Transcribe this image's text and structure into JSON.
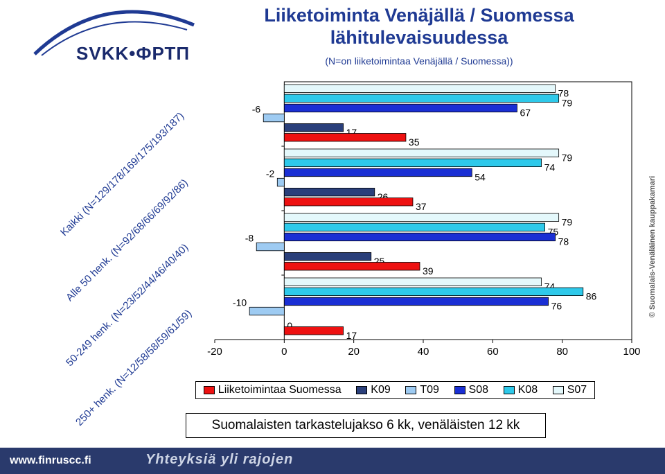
{
  "header": {
    "logo_text": "SVKK•ФРТП",
    "title": "Liiketoiminta Venäjällä / Suomessa lähitulevaisuudessa",
    "subtitle": "(N=on liiketoimintaa Venäjällä / Suomessa))"
  },
  "side_label": "© Suomalais-Venäläinen kauppakamari",
  "note": "Suomalaisten tarkastelujakso 6 kk, venäläisten 12 kk",
  "footer": {
    "url": "www.finruscc.fi",
    "slogan": "Yhteyksiä yli rajojen"
  },
  "colors": {
    "Liiketoimintaa Suomessa": "#ee1111",
    "K09": "#2a3f7a",
    "T09": "#9ecbf2",
    "S08": "#1a2fd4",
    "K08": "#2ec9ea",
    "S07": "#e4f8fb"
  },
  "chart_data": {
    "type": "bar",
    "orientation": "horizontal",
    "categories": [
      "Kaikki (N=129/178/169/175/193/187)",
      "Alle 50 henk. (N=92/68/66/69/92/86)",
      "50-249 henk. (N=23/52/44/46/40/40)",
      "250+ henk. (N=12/58/58/59/61/59)"
    ],
    "series": [
      {
        "name": "S07",
        "values": [
          78,
          79,
          79,
          74
        ]
      },
      {
        "name": "K08",
        "values": [
          79,
          74,
          75,
          86
        ]
      },
      {
        "name": "S08",
        "values": [
          67,
          54,
          78,
          76
        ]
      },
      {
        "name": "T09",
        "values": [
          -6,
          -2,
          -8,
          -10
        ]
      },
      {
        "name": "K09",
        "values": [
          17,
          26,
          25,
          0
        ]
      },
      {
        "name": "Liiketoimintaa Suomessa",
        "values": [
          35,
          37,
          39,
          17
        ]
      }
    ],
    "legend_order": [
      "Liiketoimintaa Suomessa",
      "K09",
      "T09",
      "S08",
      "K08",
      "S07"
    ],
    "xlim": [
      -20,
      100
    ],
    "xticks": [
      -20,
      0,
      20,
      40,
      60,
      80,
      100
    ],
    "legend_position": "bottom"
  }
}
